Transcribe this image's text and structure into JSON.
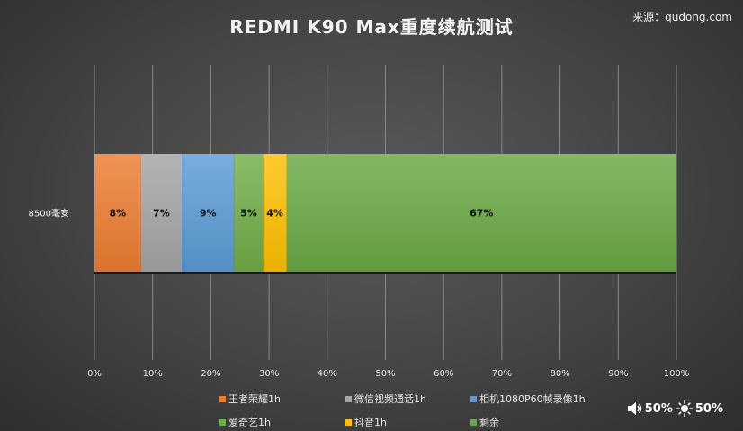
{
  "title": "REDMI K90 Max重度续航测试",
  "source": "来源：qudong.com",
  "chart_data": {
    "type": "bar",
    "orientation": "horizontal",
    "stacked": true,
    "categories": [
      "8500毫安"
    ],
    "series": [
      {
        "name": "王者荣耀1h",
        "values": [
          8
        ],
        "label": "8%",
        "color": "#ED7D31"
      },
      {
        "name": "微信视频通话1h",
        "values": [
          7
        ],
        "label": "7%",
        "color": "#A5A5A5"
      },
      {
        "name": "相机1080P60帧录像1h",
        "values": [
          9
        ],
        "label": "9%",
        "color": "#5B9BD5"
      },
      {
        "name": "爱奇艺1h",
        "values": [
          5
        ],
        "label": "5%",
        "color": "#70AD47"
      },
      {
        "name": "抖音1h",
        "values": [
          4
        ],
        "label": "4%",
        "color": "#FFC000"
      },
      {
        "name": "剩余",
        "values": [
          67
        ],
        "label": "67%",
        "color": "#6AA843"
      }
    ],
    "xlim": [
      0,
      100
    ],
    "xticks": [
      "0%",
      "10%",
      "20%",
      "30%",
      "40%",
      "50%",
      "60%",
      "70%",
      "80%",
      "90%",
      "100%"
    ],
    "grid": true,
    "legend": "bottom"
  },
  "status": {
    "volume_icon": "speaker-icon",
    "volume": "50%",
    "brightness_icon": "sun-icon",
    "brightness": "50%"
  }
}
